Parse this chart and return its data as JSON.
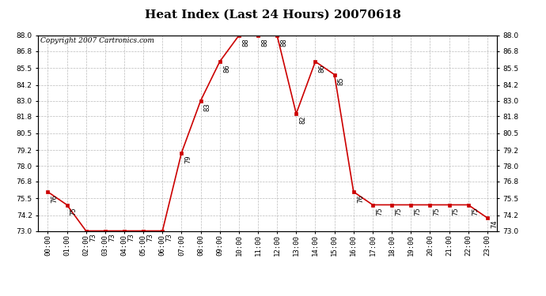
{
  "title": "Heat Index (Last 24 Hours) 20070618",
  "copyright_text": "Copyright 2007 Cartronics.com",
  "hours": [
    "00:00",
    "01:00",
    "02:00",
    "03:00",
    "04:00",
    "05:00",
    "06:00",
    "07:00",
    "08:00",
    "09:00",
    "10:00",
    "11:00",
    "12:00",
    "13:00",
    "14:00",
    "15:00",
    "16:00",
    "17:00",
    "18:00",
    "19:00",
    "20:00",
    "21:00",
    "22:00",
    "23:00"
  ],
  "values": [
    76,
    75,
    73,
    73,
    73,
    73,
    73,
    79,
    83,
    86,
    88,
    88,
    88,
    82,
    86,
    85,
    76,
    75,
    75,
    75,
    75,
    75,
    75,
    74
  ],
  "ylim_min": 73.0,
  "ylim_max": 88.0,
  "ytick_vals": [
    73.0,
    74.2,
    75.5,
    76.8,
    78.0,
    79.2,
    80.5,
    81.8,
    83.0,
    84.2,
    85.5,
    86.8,
    88.0
  ],
  "ytick_labels": [
    "73.0",
    "74.2",
    "75.5",
    "76.8",
    "78.0",
    "79.2",
    "80.5",
    "81.8",
    "83.0",
    "84.2",
    "85.5",
    "86.8",
    "88.0"
  ],
  "line_color": "#cc0000",
  "marker_color": "#cc0000",
  "bg_color": "#ffffff",
  "grid_color": "#bbbbbb",
  "title_fontsize": 11,
  "copyright_fontsize": 6.5,
  "label_fontsize": 6,
  "tick_fontsize": 6.5
}
